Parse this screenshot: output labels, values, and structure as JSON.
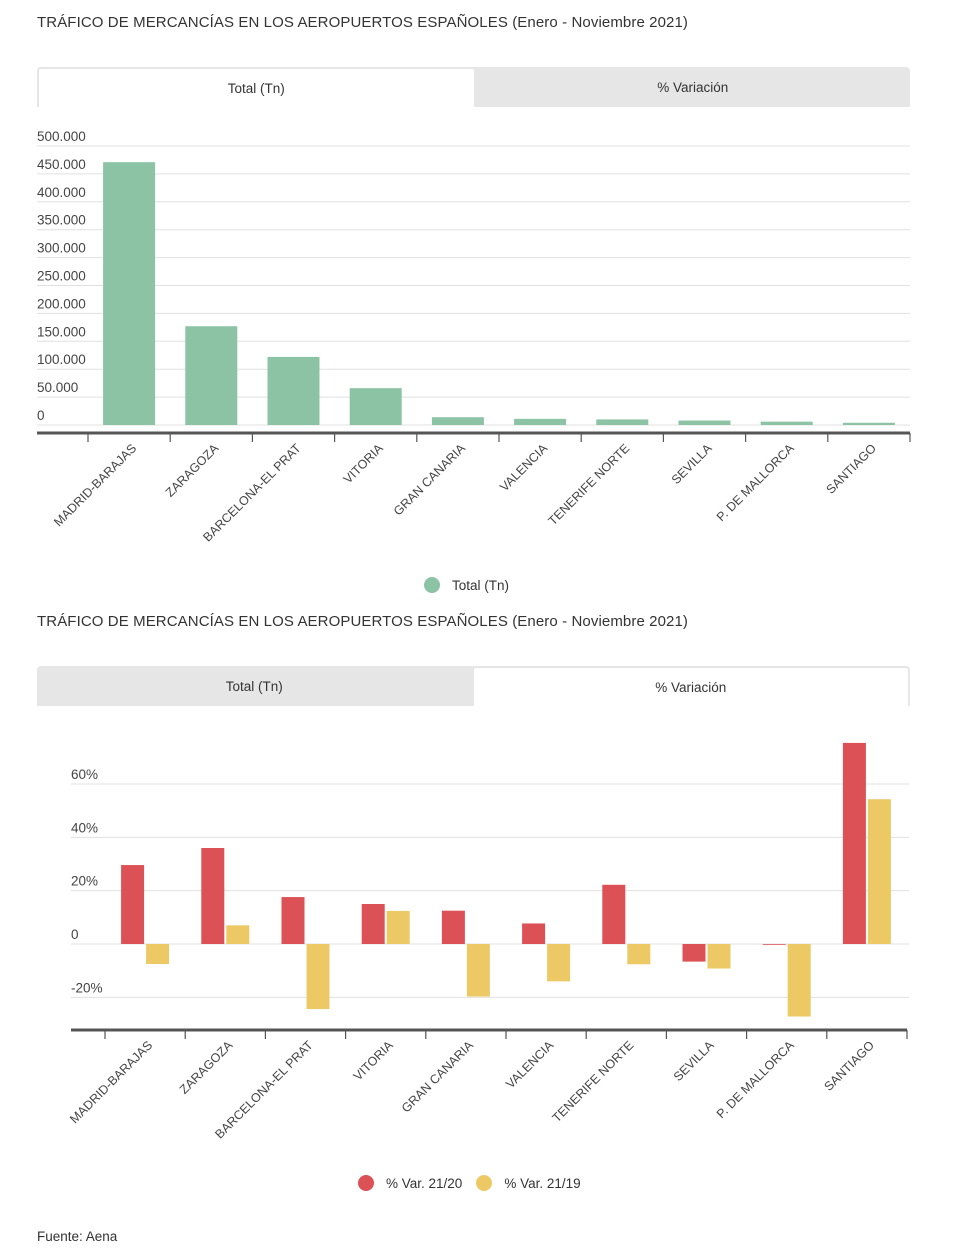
{
  "colors": {
    "total": "#8cc3a5",
    "var2120": "#dc5156",
    "var2119": "#edc966",
    "grid": "#e0e0e0",
    "axis": "#555555"
  },
  "chart1": {
    "title": "TRÁFICO DE MERCANCÍAS EN LOS AEROPUERTOS ESPAÑOLES (Enero - Noviembre 2021)",
    "tabs": [
      {
        "label": "Total (Tn)",
        "active": true
      },
      {
        "label": "% Variación",
        "active": false
      }
    ],
    "legend": [
      "Total (Tn)"
    ]
  },
  "chart2": {
    "title": "TRÁFICO DE MERCANCÍAS EN LOS AEROPUERTOS ESPAÑOLES (Enero - Noviembre 2021)",
    "tabs": [
      {
        "label": "Total (Tn)",
        "active": false
      },
      {
        "label": "% Variación",
        "active": true
      }
    ],
    "legend": [
      "% Var. 21/20",
      "% Var. 21/19"
    ]
  },
  "source": "Fuente: Aena",
  "chart_data": [
    {
      "type": "bar",
      "title": "TRÁFICO DE MERCANCÍAS EN LOS AEROPUERTOS ESPAÑOLES (Enero - Noviembre 2021)",
      "categories": [
        "MADRID-BARAJAS",
        "ZARAGOZA",
        "BARCELONA-EL PRAT",
        "VITORIA",
        "GRAN CANARIA",
        "VALENCIA",
        "TENERIFE NORTE",
        "SEVILLA",
        "P. DE MALLORCA",
        "SANTIAGO"
      ],
      "series": [
        {
          "name": "Total (Tn)",
          "values": [
            471000,
            177000,
            122000,
            66000,
            14000,
            11000,
            10000,
            8000,
            6000,
            4000
          ]
        }
      ],
      "xlabel": "",
      "ylabel": "",
      "ylim": [
        0,
        500000
      ],
      "yticks": [
        0,
        50000,
        100000,
        150000,
        200000,
        250000,
        300000,
        350000,
        400000,
        450000,
        500000
      ],
      "ytick_labels": [
        "0",
        "50.000",
        "100.000",
        "150.000",
        "200.000",
        "250.000",
        "300.000",
        "350.000",
        "400.000",
        "450.000",
        "500.000"
      ],
      "grid": true,
      "legend": "bottom-center"
    },
    {
      "type": "bar",
      "title": "TRÁFICO DE MERCANCÍAS EN LOS AEROPUERTOS ESPAÑOLES (Enero - Noviembre 2021)",
      "categories": [
        "MADRID-BARAJAS",
        "ZARAGOZA",
        "BARCELONA-EL PRAT",
        "VITORIA",
        "GRAN CANARIA",
        "VALENCIA",
        "TENERIFE NORTE",
        "SEVILLA",
        "P. DE MALLORCA",
        "SANTIAGO"
      ],
      "series": [
        {
          "name": "% Var. 21/20",
          "values": [
            29.6,
            36.0,
            17.6,
            15.0,
            12.5,
            7.7,
            22.2,
            -6.6,
            -0.3,
            75.4
          ]
        },
        {
          "name": "% Var. 21/19",
          "values": [
            -7.5,
            7.0,
            -24.4,
            12.4,
            -19.7,
            -14.0,
            -7.6,
            -9.2,
            -27.2,
            54.3
          ]
        }
      ],
      "xlabel": "",
      "ylabel": "",
      "ylim": [
        -32,
        76
      ],
      "yticks": [
        -20,
        0,
        20,
        40,
        60
      ],
      "ytick_labels": [
        "-20%",
        "0",
        "20%",
        "40%",
        "60%"
      ],
      "grid": true,
      "legend": "bottom-center"
    }
  ]
}
